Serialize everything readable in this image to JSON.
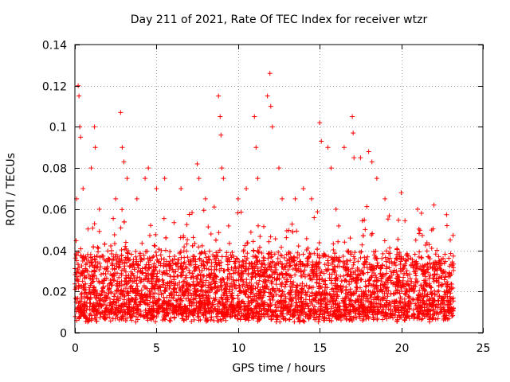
{
  "chart_data": {
    "type": "scatter",
    "title": "Day 211 of 2021, Rate Of TEC Index for receiver wtzr",
    "xlabel": "GPS time / hours",
    "ylabel": "ROTI / TECUs",
    "xlim": [
      0,
      25
    ],
    "ylim": [
      0,
      0.14
    ],
    "xticks": [
      0,
      5,
      10,
      15,
      20,
      25
    ],
    "yticks": [
      0,
      0.02,
      0.04,
      0.06,
      0.08,
      0.1,
      0.12,
      0.14
    ],
    "ytick_labels": [
      "0",
      "0.02",
      "0.04",
      "0.06",
      "0.08",
      "0.1",
      "0.12",
      "0.14"
    ],
    "grid": true,
    "marker": "+",
    "color": "#ff0000",
    "x_range_of_data": [
      0,
      23.2
    ],
    "series": [
      {
        "name": "ROTI",
        "points": [
          [
            0.1,
            0.065
          ],
          [
            0.2,
            0.12
          ],
          [
            0.25,
            0.115
          ],
          [
            0.3,
            0.1
          ],
          [
            0.35,
            0.095
          ],
          [
            0.5,
            0.07
          ],
          [
            1.0,
            0.08
          ],
          [
            1.2,
            0.1
          ],
          [
            1.25,
            0.09
          ],
          [
            1.5,
            0.06
          ],
          [
            2.5,
            0.065
          ],
          [
            2.8,
            0.107
          ],
          [
            2.9,
            0.09
          ],
          [
            3.0,
            0.083
          ],
          [
            3.2,
            0.075
          ],
          [
            3.8,
            0.065
          ],
          [
            4.3,
            0.075
          ],
          [
            4.5,
            0.08
          ],
          [
            5.0,
            0.07
          ],
          [
            5.5,
            0.075
          ],
          [
            6.5,
            0.07
          ],
          [
            7.5,
            0.082
          ],
          [
            7.6,
            0.075
          ],
          [
            8.0,
            0.065
          ],
          [
            8.8,
            0.115
          ],
          [
            8.9,
            0.105
          ],
          [
            8.95,
            0.096
          ],
          [
            9.0,
            0.08
          ],
          [
            9.1,
            0.075
          ],
          [
            10.0,
            0.065
          ],
          [
            10.5,
            0.07
          ],
          [
            11.0,
            0.105
          ],
          [
            11.1,
            0.09
          ],
          [
            11.2,
            0.075
          ],
          [
            11.8,
            0.115
          ],
          [
            11.95,
            0.126
          ],
          [
            12.0,
            0.11
          ],
          [
            12.1,
            0.1
          ],
          [
            12.5,
            0.08
          ],
          [
            12.7,
            0.065
          ],
          [
            13.5,
            0.065
          ],
          [
            14.0,
            0.07
          ],
          [
            14.5,
            0.065
          ],
          [
            15.0,
            0.102
          ],
          [
            15.1,
            0.093
          ],
          [
            15.5,
            0.09
          ],
          [
            15.7,
            0.08
          ],
          [
            16.0,
            0.06
          ],
          [
            16.5,
            0.09
          ],
          [
            17.0,
            0.105
          ],
          [
            17.05,
            0.097
          ],
          [
            17.1,
            0.085
          ],
          [
            17.5,
            0.085
          ],
          [
            18.0,
            0.088
          ],
          [
            18.2,
            0.083
          ],
          [
            18.5,
            0.075
          ],
          [
            19.0,
            0.065
          ],
          [
            20.0,
            0.068
          ],
          [
            21.0,
            0.06
          ],
          [
            22.0,
            0.062
          ],
          [
            22.8,
            0.052
          ],
          [
            23.0,
            0.045
          ]
        ]
      }
    ]
  }
}
